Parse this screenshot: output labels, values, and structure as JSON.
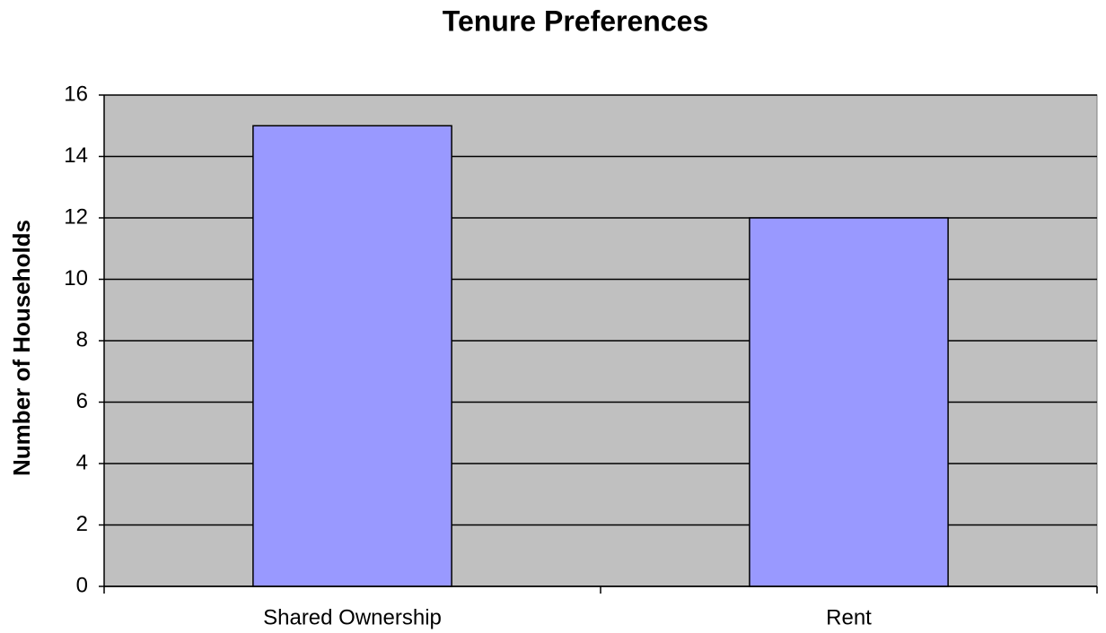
{
  "chart_data": {
    "type": "bar",
    "title": "Tenure Preferences",
    "y_label": "Number of Households",
    "categories": [
      "Shared Ownership",
      "Rent"
    ],
    "values": [
      15,
      12
    ],
    "color": "#9999ff",
    "plot_background": "#c0c0c0",
    "ylim": [
      0,
      16
    ],
    "yticks": [
      0,
      2,
      4,
      6,
      8,
      10,
      12,
      14,
      16
    ],
    "grid": true
  }
}
